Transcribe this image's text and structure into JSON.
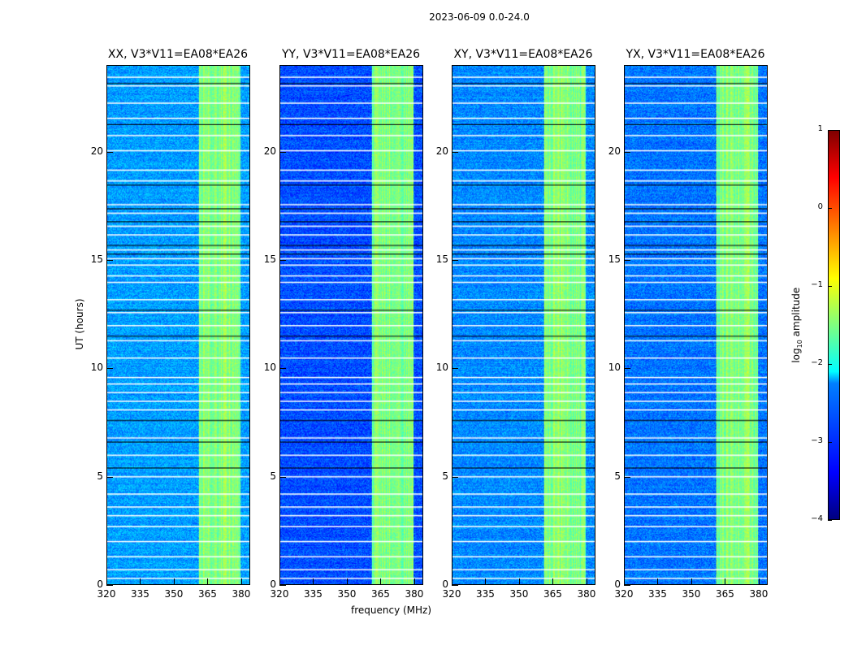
{
  "chart_data": {
    "type": "heatmap",
    "title": "2023-06-09 0.0-24.0",
    "xlabel": "frequency (MHz)",
    "ylabel": "UT (hours)",
    "xlim": [
      320,
      384
    ],
    "ylim": [
      0,
      24
    ],
    "xticks": [
      "320",
      "335",
      "350",
      "365",
      "380"
    ],
    "yticks": [
      "0",
      "5",
      "10",
      "15",
      "20"
    ],
    "panels": [
      {
        "title": "XX, V3*V11=EA08*EA26",
        "background": -2.6,
        "band_level": -1.5
      },
      {
        "title": "YY, V3*V11=EA08*EA26",
        "background": -3.0,
        "band_level": -1.5
      },
      {
        "title": "XY, V3*V11=EA08*EA26",
        "background": -2.7,
        "band_level": -1.5
      },
      {
        "title": "YX, V3*V11=EA08*EA26",
        "background": -2.8,
        "band_level": -1.5
      }
    ],
    "bright_band_mhz": [
      361,
      380
    ],
    "colorbar": {
      "label": "log10 amplitude",
      "label_main": "log",
      "label_sub": "10",
      "label_rest": " amplitude",
      "range": [
        -4,
        1
      ],
      "ticks": [
        "1",
        "0",
        "−1",
        "−2",
        "−3",
        "−4"
      ],
      "colormap": "jet"
    },
    "flagged_rows_ut_white": [
      0.3,
      0.7,
      1.3,
      2.0,
      2.7,
      3.2,
      3.6,
      4.2,
      5.0,
      6.0,
      6.8,
      8.1,
      8.5,
      8.9,
      9.3,
      9.6,
      10.5,
      11.3,
      12.0,
      12.6,
      13.2,
      14.0,
      14.3,
      14.8,
      15.1,
      15.5,
      16.2,
      16.6,
      17.2,
      17.6,
      18.7,
      19.2,
      20.1,
      20.8,
      21.6,
      22.3,
      23.1,
      23.5
    ],
    "flagged_rows_ut_black": [
      5.4,
      6.6,
      7.6,
      11.5,
      12.7,
      15.3,
      15.7,
      16.8,
      17.4,
      18.5,
      21.3,
      23.2
    ]
  }
}
